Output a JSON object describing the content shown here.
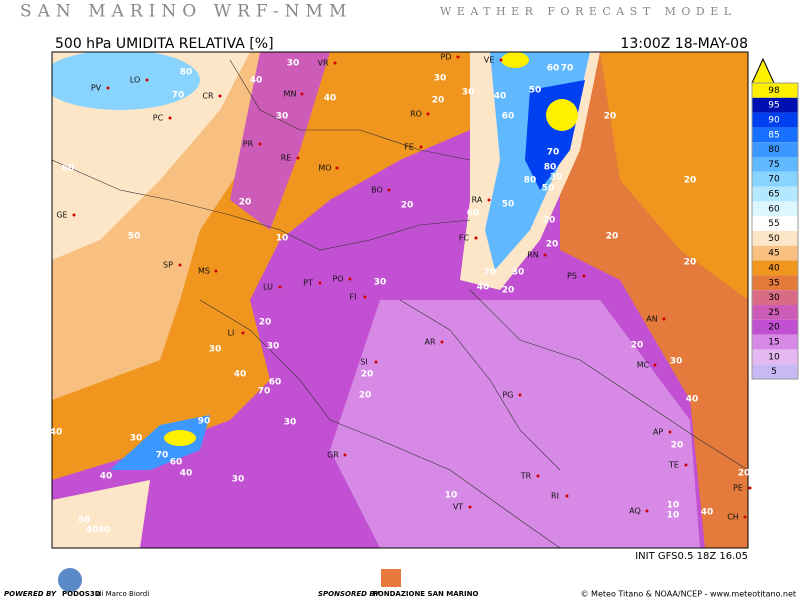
{
  "header": {
    "title": "SAN MARINO WRF-NMM",
    "subtitle": "WEATHER FORECAST MODEL"
  },
  "map": {
    "field": "500 hPa UMIDITA RELATIVA [%]",
    "time": "13:00Z 18-MAY-08",
    "init": "INIT GFS0.5 18Z 16.05",
    "cities": [
      "PV",
      "LO",
      "CR",
      "PC",
      "VR",
      "MN",
      "PR",
      "RE",
      "MO",
      "RO",
      "FE",
      "BO",
      "GE",
      "SP",
      "MS",
      "LU",
      "PT",
      "PO",
      "FI",
      "LI",
      "SI",
      "AR",
      "PG",
      "GR",
      "TR",
      "VT",
      "RI",
      "AQ",
      "TE",
      "PE",
      "CH",
      "AP",
      "MC",
      "AN",
      "PS",
      "RN",
      "FC",
      "RA",
      "PD",
      "VE"
    ],
    "contour_labels": [
      80,
      70,
      40,
      30,
      30,
      40,
      30,
      20,
      30,
      40,
      50,
      60,
      70,
      60,
      20,
      70,
      80,
      30,
      80,
      50,
      20,
      50,
      20,
      60,
      10,
      20,
      20,
      50,
      60,
      30,
      20,
      20,
      20,
      70,
      30,
      20,
      40,
      20,
      30,
      30,
      20,
      40,
      70,
      60,
      20,
      30,
      90,
      70,
      60,
      40,
      30,
      40,
      40,
      30,
      20,
      30,
      40,
      20,
      10,
      10,
      10,
      40,
      20,
      30,
      50,
      40
    ]
  },
  "colorbar": {
    "levels": [
      98,
      95,
      90,
      85,
      80,
      75,
      70,
      65,
      60,
      55,
      50,
      45,
      40,
      35,
      30,
      25,
      20,
      15,
      10,
      5
    ],
    "colors": [
      "#fff000",
      "#0010b0",
      "#0040f0",
      "#1870ff",
      "#3c98ff",
      "#60b8ff",
      "#88d4ff",
      "#b4e8ff",
      "#dcf6ff",
      "#ffffff",
      "#fde6c8",
      "#f8c080",
      "#f0961e",
      "#e47a3c",
      "#d86c84",
      "#cc5cb8",
      "#c250d2",
      "#d68ae6",
      "#e6b8f2",
      "#c8b8f4"
    ]
  },
  "footer": {
    "powered": "POWERED BY",
    "podos": "PODOS3D",
    "author": "di Marco Biordi",
    "sponsored": "SPONSORED BY",
    "sponsor": "FONDAZIONE SAN MARINO",
    "credit": "© Meteo Titano & NOAA/NCEP - www.meteotitano.net"
  }
}
